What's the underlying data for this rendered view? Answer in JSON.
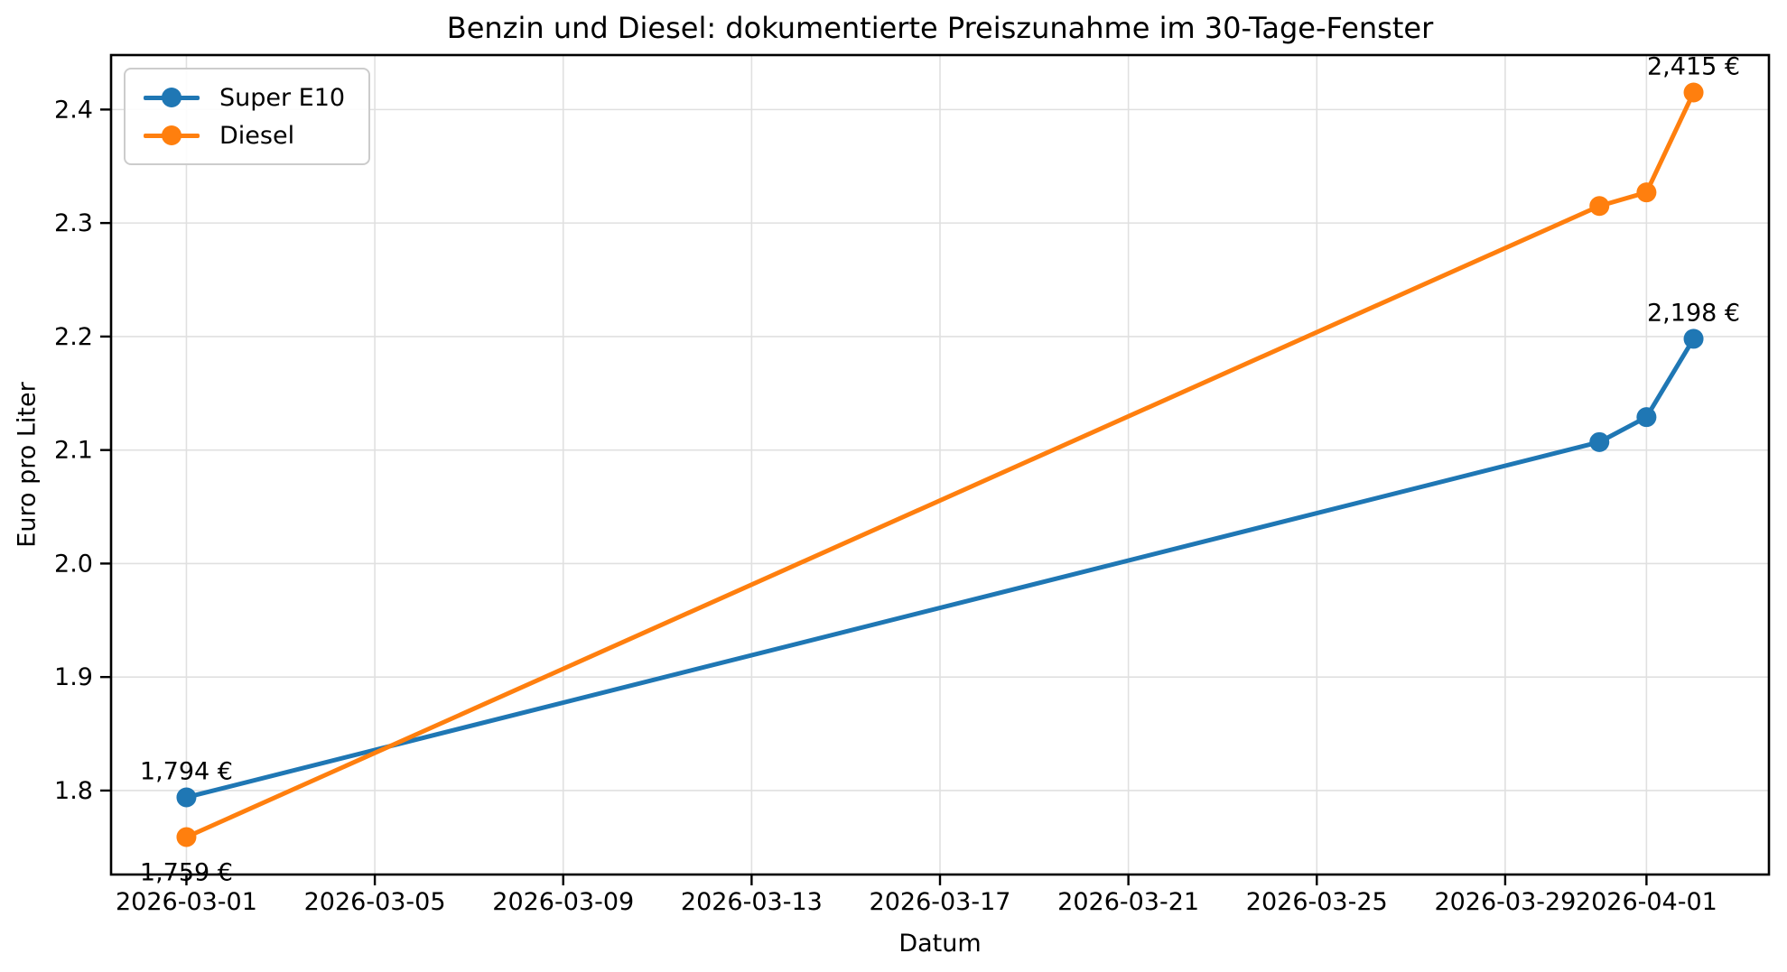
{
  "chart_data": {
    "type": "line",
    "title": "Benzin und Diesel: dokumentierte Preiszunahme im 30-Tage-Fenster",
    "xlabel": "Datum",
    "ylabel": "Euro pro Liter",
    "x_dates": [
      "2026-03-01",
      "2026-03-31",
      "2026-04-01",
      "2026-04-02"
    ],
    "series": [
      {
        "name": "Super E10",
        "color": "#1f77b4",
        "values": [
          1.794,
          2.107,
          2.129,
          2.198
        ]
      },
      {
        "name": "Diesel",
        "color": "#ff7f0e",
        "values": [
          1.759,
          2.315,
          2.327,
          2.415
        ]
      }
    ],
    "x_ticks": [
      "2026-03-01",
      "2026-03-05",
      "2026-03-09",
      "2026-03-13",
      "2026-03-17",
      "2026-03-21",
      "2026-03-25",
      "2026-03-29",
      "2026-04-01"
    ],
    "y_ticks": [
      1.8,
      1.9,
      2.0,
      2.1,
      2.2,
      2.3,
      2.4
    ],
    "y_tick_labels": [
      "1.8",
      "1.9",
      "2.0",
      "2.1",
      "2.2",
      "2.3",
      "2.4"
    ],
    "xlim_days": [
      -1.6,
      33.6
    ],
    "ylim": [
      1.726,
      2.448
    ],
    "grid": true,
    "grid_color": "#e0e0e0",
    "legend_position": "upper left",
    "annotations": [
      {
        "text": "1,794 €",
        "series": 0,
        "point": 0,
        "placement": "above"
      },
      {
        "text": "1,759 €",
        "series": 1,
        "point": 0,
        "placement": "below"
      },
      {
        "text": "2,198 €",
        "series": 0,
        "point": 3,
        "placement": "above"
      },
      {
        "text": "2,415 €",
        "series": 1,
        "point": 3,
        "placement": "above"
      }
    ]
  }
}
